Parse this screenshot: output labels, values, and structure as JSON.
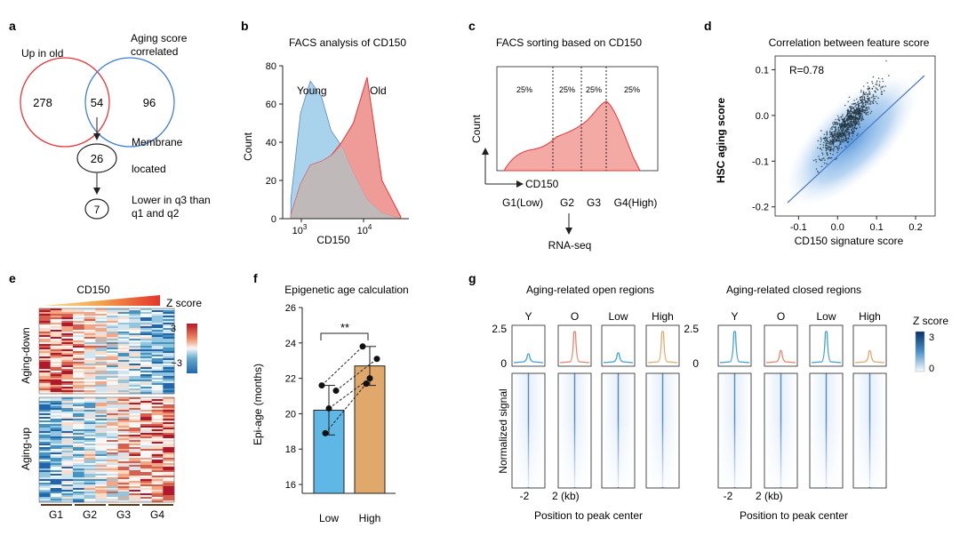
{
  "panels": {
    "a": {
      "letter": "a",
      "label_up_old": "Up in old",
      "label_aging_1": "Aging score",
      "label_aging_2": "correlated",
      "left_only": "278",
      "overlap": "54",
      "right_only": "96",
      "membrane_count": "26",
      "membrane_1": "Membrane",
      "membrane_2": "located",
      "lower_count": "7",
      "lower_1": "Lower in q3 than",
      "lower_2": "q1 and q2",
      "colors": {
        "up_old": "#e8343a",
        "aging": "#3f7fd0"
      }
    },
    "b": {
      "letter": "b",
      "title": "FACS analysis of CD150",
      "ylabel": "Count",
      "xlabel": "CD150",
      "young_label": "Young",
      "old_label": "Old",
      "yticks": [
        "0",
        "20",
        "40",
        "60",
        "80"
      ],
      "xtick_base": "10",
      "xtick_exp": [
        "3",
        "4"
      ],
      "colors": {
        "young": "#a9d3ec",
        "old": "#ec8a86",
        "overlap": "#bdbdbd"
      }
    },
    "c": {
      "letter": "c",
      "title": "FACS sorting based on CD150",
      "ylabel": "Count",
      "xlabel": "CD150",
      "bins": [
        "25%",
        "25%",
        "25%",
        "25%"
      ],
      "groups": [
        "G1(Low)",
        "G2",
        "G3",
        "G4(High)"
      ],
      "method": "RNA-seq",
      "colors": {
        "fill": "#f3a9a4",
        "line": "#e8343a"
      }
    },
    "d": {
      "letter": "d",
      "title": "Correlation between feature score",
      "r_text": "R=0.78",
      "xlabel": "CD150 signature score",
      "ylabel": "HSC aging score",
      "xticks": [
        "-0.1",
        "0.0",
        "0.1",
        "0.2"
      ],
      "yticks": [
        "0.1",
        "0.0",
        "-0.1",
        "-0.2"
      ]
    },
    "e": {
      "letter": "e",
      "header": "CD150",
      "zscore": "Z score",
      "scale_max": "3",
      "scale_min": "−3",
      "row_top": "Aging-down",
      "row_bottom": "Aging-up",
      "groups": [
        "G1",
        "G2",
        "G3",
        "G4"
      ]
    },
    "f": {
      "letter": "f",
      "title": "Epigenetic age calculation",
      "ylabel": "Epi-age (months)",
      "yticks": [
        "16",
        "18",
        "20",
        "22",
        "24",
        "26"
      ],
      "significance": "**",
      "categories": [
        "Low",
        "High"
      ],
      "colors": {
        "low": "#5fb7e5",
        "high": "#e0a96b"
      }
    },
    "g": {
      "letter": "g",
      "left_title": "Aging-related open regions",
      "right_title": "Aging-related closed regions",
      "columns": [
        "Y",
        "O",
        "Low",
        "High"
      ],
      "ytick_top": "2.5",
      "ytick_bottom": "0",
      "ylabel": "Normalized signal",
      "xtick_left": "-2",
      "xtick_right": "2 (kb)",
      "xlabel": "Position to peak center",
      "zscore": "Z score",
      "scale_max": "3",
      "scale_min": "0",
      "colors": {
        "y": "#3f9fd8",
        "o": "#e8836a",
        "low": "#3f9fd8",
        "high": "#e0a96b"
      }
    }
  },
  "chart_data": [
    {
      "type": "area",
      "title": "FACS analysis of CD150",
      "xlabel": "CD150",
      "ylabel": "Count",
      "x_scale": "log",
      "ylim": [
        0,
        80
      ],
      "series": [
        {
          "name": "Young",
          "x": [
            1000,
            1300,
            1700,
            2300,
            3000,
            4000,
            5500,
            8000,
            12000,
            20000
          ],
          "values": [
            10,
            55,
            72,
            64,
            46,
            38,
            24,
            10,
            3,
            0
          ]
        },
        {
          "name": "Old",
          "x": [
            1000,
            1300,
            1700,
            2300,
            3000,
            4000,
            5500,
            8000,
            12000,
            20000
          ],
          "values": [
            2,
            18,
            28,
            30,
            33,
            40,
            50,
            74,
            20,
            1
          ]
        }
      ]
    },
    {
      "type": "bar",
      "title": "Epigenetic age calculation",
      "ylabel": "Epi-age (months)",
      "categories": [
        "Low",
        "High"
      ],
      "values": [
        20.2,
        22.7
      ],
      "error": [
        1.4,
        1.1
      ],
      "ylim": [
        15.5,
        26
      ],
      "points": {
        "Low": [
          21.6,
          21.3,
          20.3,
          18.9
        ],
        "High": [
          23.8,
          23.1,
          22.0,
          21.7
        ]
      }
    },
    {
      "type": "scatter",
      "title": "Correlation between feature score",
      "xlabel": "CD150 signature score",
      "ylabel": "HSC aging score",
      "xlim": [
        -0.16,
        0.25
      ],
      "ylim": [
        -0.22,
        0.13
      ],
      "r": 0.78
    }
  ]
}
